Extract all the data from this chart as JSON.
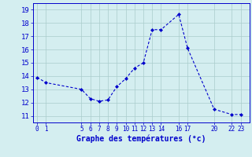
{
  "x": [
    0,
    1,
    5,
    6,
    7,
    8,
    9,
    10,
    11,
    12,
    13,
    14,
    16,
    17,
    20,
    22,
    23
  ],
  "y": [
    13.9,
    13.5,
    13.0,
    12.3,
    12.1,
    12.2,
    13.2,
    13.8,
    14.6,
    15.0,
    17.5,
    17.5,
    18.65,
    16.1,
    11.5,
    11.1,
    11.1
  ],
  "xticks": [
    0,
    1,
    5,
    6,
    7,
    8,
    9,
    10,
    11,
    12,
    13,
    14,
    16,
    17,
    20,
    22,
    23
  ],
  "xtick_labels": [
    "0",
    "1",
    "5",
    "6",
    "7",
    "8",
    "9",
    "10",
    "11",
    "12",
    "13",
    "14",
    "16",
    "17",
    "20",
    "22",
    "23"
  ],
  "yticks": [
    11,
    12,
    13,
    14,
    15,
    16,
    17,
    18,
    19
  ],
  "ylim": [
    10.5,
    19.5
  ],
  "xlim": [
    -0.5,
    24.0
  ],
  "line_color": "#0000cc",
  "marker_color": "#0000cc",
  "bg_color": "#d4eef0",
  "grid_color": "#aacccc",
  "xlabel": "Graphe des températures (°c)",
  "xlabel_color": "#0000cc",
  "tick_color": "#0000cc",
  "tick_fontsize": 5.5,
  "ytick_fontsize": 6.5,
  "xlabel_fontsize": 7.0
}
